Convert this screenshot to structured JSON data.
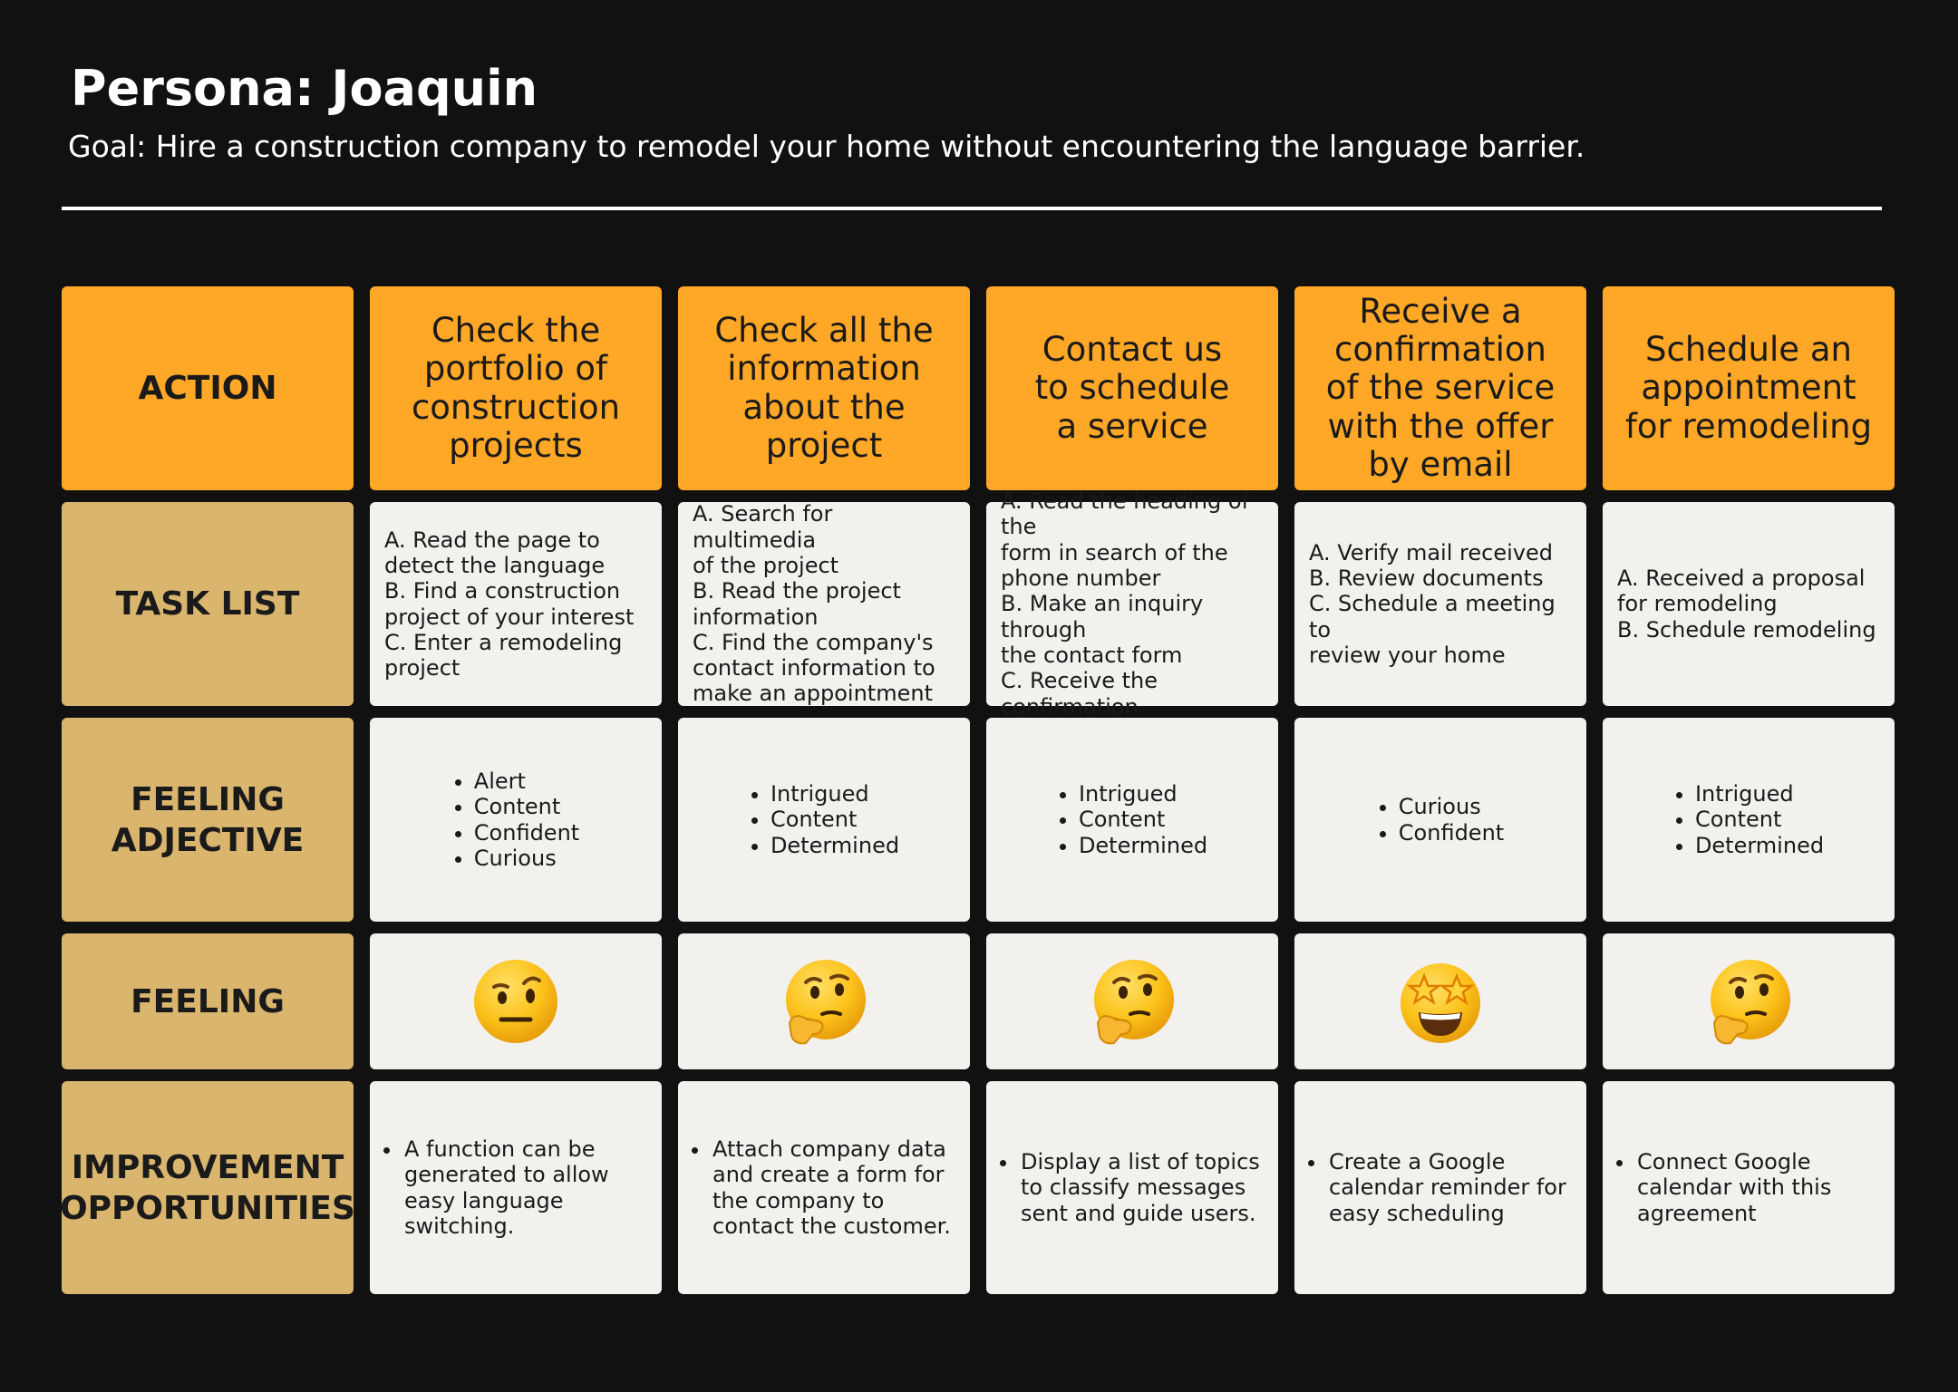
{
  "header": {
    "title": "Persona: Joaquin",
    "goal": "Goal: Hire a construction company to remodel your home without encountering the language barrier."
  },
  "rows": {
    "action": "ACTION",
    "task_list": "TASK LIST",
    "feeling_adjective": "FEELING\nADJECTIVE",
    "feeling": "FEELING",
    "improvement": "IMPROVEMENT\nOPPORTUNITIES"
  },
  "columns": [
    {
      "action": "Check the\nportfolio of\nconstruction\nprojects",
      "tasks": "A. Read the page to\ndetect the language\nB. Find a construction\nproject of your interest\nC. Enter a remodeling\nproject",
      "feelings": [
        "Alert",
        "Content",
        "Confident",
        "Curious"
      ],
      "emoji": "face-with-raised-eyebrow",
      "opportunities": [
        "A function can be generated to allow easy language switching."
      ]
    },
    {
      "action": "Check all the\ninformation\nabout the\nproject",
      "tasks": "A. Search for multimedia\nof the project\nB. Read the project\ninformation\nC. Find the company's\ncontact information to\nmake an appointment",
      "feelings": [
        "Intrigued",
        "Content",
        "Determined"
      ],
      "emoji": "thinking-face",
      "opportunities": [
        "Attach company data and create a form for the company to contact the customer."
      ]
    },
    {
      "action": "Contact us\nto schedule\na service",
      "tasks": "A. Read the heading of the\nform in search of the\nphone number\nB. Make an inquiry through\nthe contact form\nC. Receive the\nconfirmation",
      "feelings": [
        "Intrigued",
        "Content",
        "Determined"
      ],
      "emoji": "thinking-face",
      "opportunities": [
        "Display a list of topics to classify messages sent and guide users."
      ]
    },
    {
      "action": "Receive a\nconfirmation\nof the service\nwith the offer\nby email",
      "tasks": "A. Verify mail received\nB. Review documents\nC. Schedule a meeting to\nreview your home",
      "feelings": [
        "Curious",
        "Confident"
      ],
      "emoji": "star-struck-face",
      "opportunities": [
        "Create a Google calendar reminder for easy scheduling"
      ]
    },
    {
      "action": "Schedule an\nappointment\nfor remodeling",
      "tasks": "A. Received a proposal\nfor remodeling\nB. Schedule remodeling",
      "feelings": [
        "Intrigued",
        "Content",
        "Determined"
      ],
      "emoji": "thinking-face",
      "opportunities": [
        "Connect Google calendar with this agreement"
      ]
    }
  ]
}
